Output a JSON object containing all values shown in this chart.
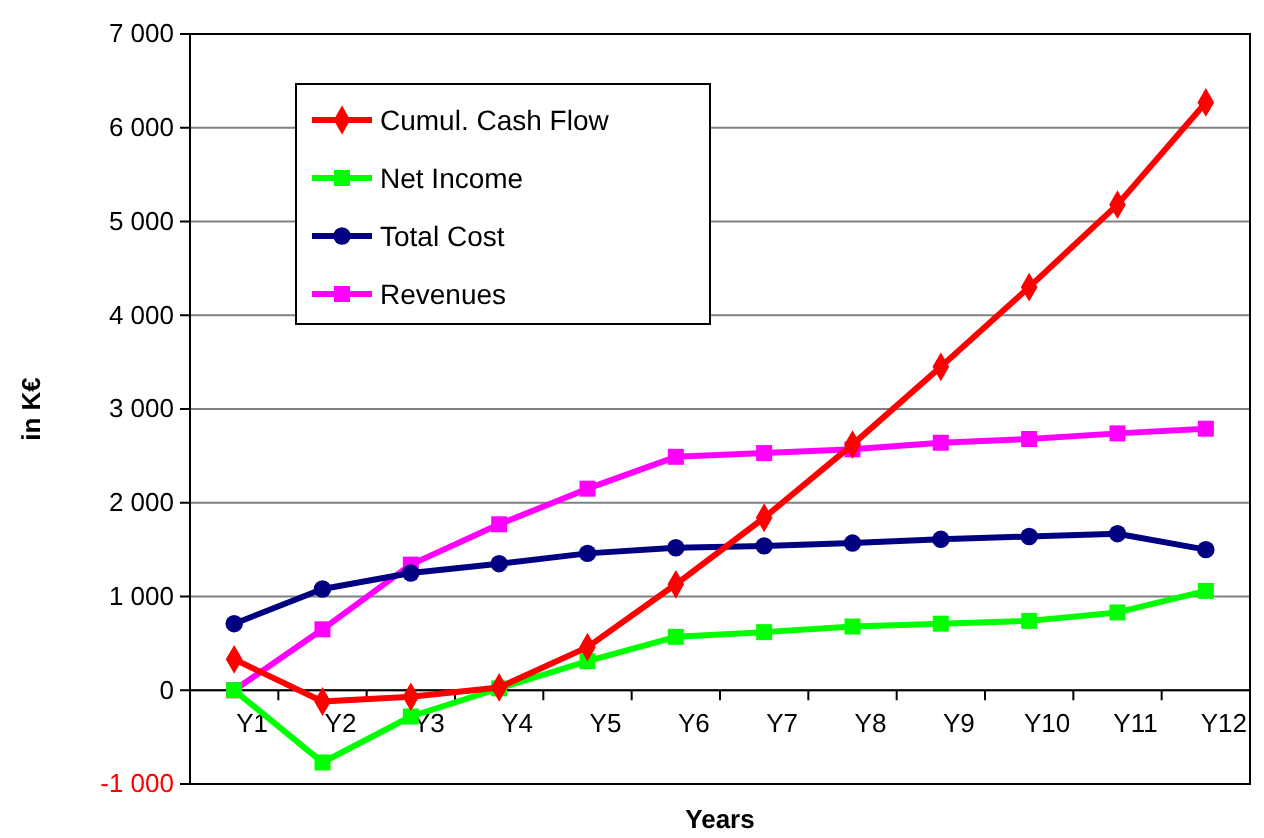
{
  "chart_data": {
    "type": "line",
    "xlabel": "Years",
    "ylabel": "in K€",
    "categories": [
      "Y1",
      "Y2",
      "Y3",
      "Y4",
      "Y5",
      "Y6",
      "Y7",
      "Y8",
      "Y9",
      "Y10",
      "Y11",
      "Y12"
    ],
    "series": [
      {
        "name": "Cumul. Cash Flow",
        "color": "#ff0000",
        "marker": "diamond",
        "values": [
          330,
          -120,
          -70,
          30,
          460,
          1130,
          1840,
          2620,
          3450,
          4300,
          5180,
          6270
        ]
      },
      {
        "name": "Net Income",
        "color": "#00ff00",
        "marker": "square",
        "values": [
          0,
          -770,
          -280,
          20,
          310,
          570,
          620,
          680,
          710,
          740,
          830,
          1060
        ]
      },
      {
        "name": "Total Cost",
        "color": "#000080",
        "marker": "circle",
        "values": [
          710,
          1080,
          1250,
          1350,
          1460,
          1520,
          1540,
          1570,
          1610,
          1640,
          1670,
          1500
        ]
      },
      {
        "name": "Revenues",
        "color": "#ff00ff",
        "marker": "square",
        "values": [
          0,
          650,
          1340,
          1770,
          2150,
          2490,
          2530,
          2570,
          2640,
          2680,
          2740,
          2790
        ]
      }
    ],
    "ylim": [
      -1000,
      7000
    ],
    "yticks": [
      {
        "value": -1000,
        "label": "-1 000"
      },
      0,
      {
        "value": 1000,
        "label": "1 000"
      },
      {
        "value": 2000,
        "label": "2 000"
      },
      {
        "value": 3000,
        "label": "3 000"
      },
      {
        "value": 4000,
        "label": "4 000"
      },
      {
        "value": 5000,
        "label": "5 000"
      },
      {
        "value": 6000,
        "label": "6 000"
      },
      {
        "value": 7000,
        "label": "7 000"
      }
    ],
    "grid": "y",
    "legend": "top left"
  }
}
